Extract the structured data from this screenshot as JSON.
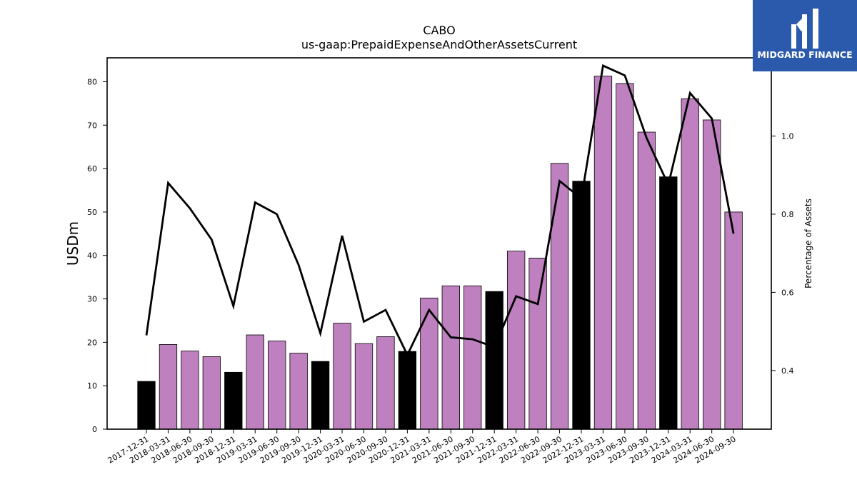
{
  "chart_data": {
    "type": "bar",
    "title": "CABO",
    "subtitle": "us-gaap:PrepaidExpenseAndOtherAssetsCurrent",
    "ylabel": "USDm",
    "y2label": "Percentage of Assets",
    "ylim": [
      0,
      85.5
    ],
    "y2lim": [
      0.25,
      1.2
    ],
    "yticks": [
      0,
      10,
      20,
      30,
      40,
      50,
      60,
      70,
      80
    ],
    "y2ticks": [
      0.4,
      0.6,
      0.8,
      1.0
    ],
    "y2tick_labels": [
      "0.4",
      "0.6",
      "0.8",
      "1.0"
    ],
    "grid": false,
    "categories": [
      "2017-12-31",
      "2018-03-31",
      "2018-06-30",
      "2018-09-30",
      "2018-12-31",
      "2019-03-31",
      "2019-06-30",
      "2019-09-30",
      "2019-12-31",
      "2020-03-31",
      "2020-06-30",
      "2020-09-30",
      "2020-12-31",
      "2021-03-31",
      "2021-06-30",
      "2021-09-30",
      "2021-12-31",
      "2022-03-31",
      "2022-06-30",
      "2022-09-30",
      "2022-12-31",
      "2023-03-31",
      "2023-06-30",
      "2023-09-30",
      "2023-12-31",
      "2024-03-31",
      "2024-06-30",
      "2024-09-30"
    ],
    "series": [
      {
        "values": [
          11.0,
          19.5,
          18.0,
          16.7,
          13.1,
          21.7,
          20.3,
          17.5,
          15.6,
          24.4,
          19.7,
          21.3,
          17.9,
          30.2,
          33.0,
          33.0,
          31.7,
          41.0,
          39.4,
          61.2,
          57.1,
          81.3,
          79.6,
          68.4,
          58.1,
          76.1,
          71.2,
          50.0
        ],
        "year_end": [
          true,
          false,
          false,
          false,
          true,
          false,
          false,
          false,
          true,
          false,
          false,
          false,
          true,
          false,
          false,
          false,
          true,
          false,
          false,
          false,
          true,
          false,
          false,
          false,
          true,
          false,
          false,
          false
        ]
      },
      {
        "axis": "right",
        "type": "line",
        "values": [
          0.49,
          0.88,
          0.815,
          0.735,
          0.565,
          0.83,
          0.8,
          0.67,
          0.495,
          0.745,
          0.525,
          0.555,
          0.44,
          0.555,
          0.485,
          0.48,
          0.46,
          0.59,
          0.57,
          0.885,
          0.84,
          1.18,
          1.155,
          0.995,
          0.875,
          1.11,
          1.045,
          0.75
        ]
      }
    ],
    "colors": {
      "bar_regular": "#bf80bf",
      "bar_year_end": "#000000",
      "line": "#000000",
      "axes": "#000000"
    }
  },
  "logo": {
    "text": "MIDGARD FINANCE",
    "bg": "#2b5aad",
    "icon": "midgard-logo-mark"
  }
}
